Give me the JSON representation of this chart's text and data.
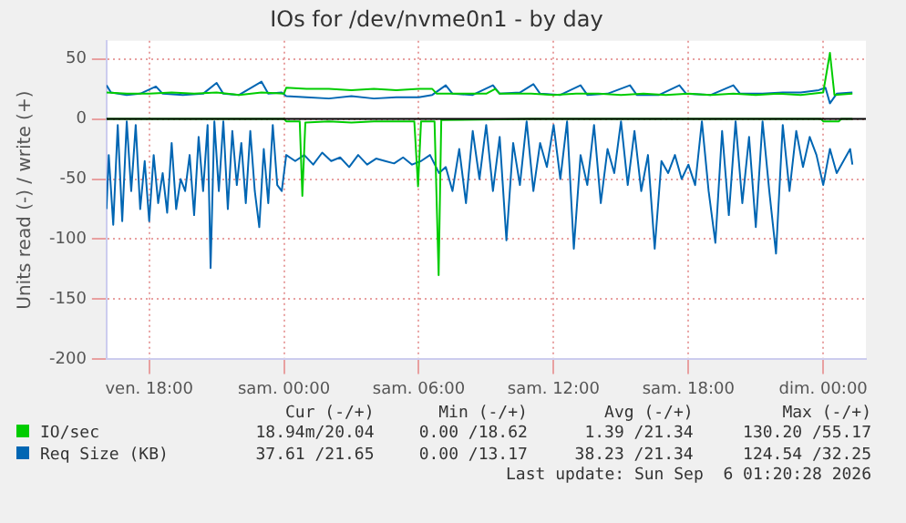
{
  "chart_data": {
    "type": "line",
    "title": "IOs for /dev/nvme0n1 - by day",
    "ylabel": "Units read (-) / write (+)",
    "xlim": [
      "2026-09-04T16:06",
      "2026-09-06T01:54"
    ],
    "xticks": [
      {
        "value": "2026-09-04T18:00",
        "label": "ven. 18:00"
      },
      {
        "value": "2026-09-05T00:00",
        "label": "sam. 00:00"
      },
      {
        "value": "2026-09-05T06:00",
        "label": "sam. 06:00"
      },
      {
        "value": "2026-09-05T12:00",
        "label": "sam. 12:00"
      },
      {
        "value": "2026-09-05T18:00",
        "label": "sam. 18:00"
      },
      {
        "value": "2026-09-06T00:00",
        "label": "dim. 00:00"
      }
    ],
    "ylim": [
      -200,
      65
    ],
    "yticks": [
      -200,
      -150,
      -100,
      -50,
      0,
      50
    ],
    "grid": true,
    "legend": "bottom",
    "marker": "none",
    "line_style": "solid",
    "ref_lines": [
      {
        "axis": "y",
        "value": 0,
        "color": "#000000"
      }
    ],
    "series": [
      {
        "color": "#00cc00",
        "x": [
          "2026-09-04T16:06",
          "2026-09-05T00:00",
          "2026-09-05T00:06",
          "2026-09-05T00:42",
          "2026-09-05T00:49",
          "2026-09-05T00:57",
          "2026-09-05T02:00",
          "2026-09-05T03:00",
          "2026-09-05T04:00",
          "2026-09-05T05:00",
          "2026-09-05T05:48",
          "2026-09-05T05:58",
          "2026-09-05T06:06",
          "2026-09-05T06:42",
          "2026-09-05T06:53",
          "2026-09-05T07:00",
          "2026-09-05T11:00",
          "2026-09-05T16:00",
          "2026-09-05T23:54",
          "2026-09-06T00:00",
          "2026-09-06T00:42",
          "2026-09-06T00:48",
          "2026-09-06T01:18"
        ],
        "values": [
          0,
          0,
          -2,
          -2,
          -64,
          -3,
          -2,
          -3,
          -2,
          -2,
          -2,
          -56,
          -2,
          -2,
          -130,
          -1,
          0,
          0,
          0,
          -2,
          -2,
          0,
          0
        ]
      },
      {
        "name": "IO/sec",
        "color": "#00cc00",
        "x": [
          "2026-09-04T16:06",
          "2026-09-04T17:00",
          "2026-09-04T18:00",
          "2026-09-04T19:00",
          "2026-09-04T20:00",
          "2026-09-04T21:00",
          "2026-09-04T22:00",
          "2026-09-04T23:00",
          "2026-09-05T00:00",
          "2026-09-05T00:06",
          "2026-09-05T01:00",
          "2026-09-05T02:00",
          "2026-09-05T03:00",
          "2026-09-05T04:00",
          "2026-09-05T05:00",
          "2026-09-05T06:00",
          "2026-09-05T06:36",
          "2026-09-05T06:48",
          "2026-09-05T08:00",
          "2026-09-05T09:00",
          "2026-09-05T09:24",
          "2026-09-05T09:36",
          "2026-09-05T11:00",
          "2026-09-05T12:00",
          "2026-09-05T13:00",
          "2026-09-05T14:00",
          "2026-09-05T15:00",
          "2026-09-05T16:00",
          "2026-09-05T17:00",
          "2026-09-05T18:00",
          "2026-09-05T19:00",
          "2026-09-05T20:00",
          "2026-09-05T21:00",
          "2026-09-05T22:00",
          "2026-09-05T23:00",
          "2026-09-06T00:00",
          "2026-09-06T00:18",
          "2026-09-06T00:30",
          "2026-09-06T01:18"
        ],
        "values": [
          22,
          21,
          21,
          22,
          21,
          22,
          20,
          22,
          21,
          26,
          25,
          25,
          24,
          25,
          24,
          25,
          25,
          21,
          21,
          21,
          25,
          21,
          21,
          20,
          21,
          21,
          20,
          21,
          20,
          21,
          20,
          21,
          20,
          21,
          20,
          22,
          55,
          20,
          21
        ]
      },
      {
        "color": "#0066b3",
        "x": [
          "2026-09-04T16:06",
          "2026-09-04T16:12",
          "2026-09-04T16:24",
          "2026-09-04T16:36",
          "2026-09-04T16:48",
          "2026-09-04T17:00",
          "2026-09-04T17:12",
          "2026-09-04T17:24",
          "2026-09-04T17:36",
          "2026-09-04T17:48",
          "2026-09-04T18:00",
          "2026-09-04T18:12",
          "2026-09-04T18:24",
          "2026-09-04T18:36",
          "2026-09-04T18:48",
          "2026-09-04T19:00",
          "2026-09-04T19:12",
          "2026-09-04T19:24",
          "2026-09-04T19:36",
          "2026-09-04T19:48",
          "2026-09-04T20:00",
          "2026-09-04T20:12",
          "2026-09-04T20:24",
          "2026-09-04T20:36",
          "2026-09-04T20:44",
          "2026-09-04T20:54",
          "2026-09-04T21:06",
          "2026-09-04T21:18",
          "2026-09-04T21:30",
          "2026-09-04T21:42",
          "2026-09-04T21:54",
          "2026-09-04T22:06",
          "2026-09-04T22:18",
          "2026-09-04T22:30",
          "2026-09-04T22:42",
          "2026-09-04T22:54",
          "2026-09-04T23:06",
          "2026-09-04T23:18",
          "2026-09-04T23:30",
          "2026-09-04T23:42",
          "2026-09-04T23:54",
          "2026-09-05T00:06",
          "2026-09-05T00:30",
          "2026-09-05T00:54",
          "2026-09-05T01:18",
          "2026-09-05T01:42",
          "2026-09-05T02:06",
          "2026-09-05T02:30",
          "2026-09-05T02:54",
          "2026-09-05T03:18",
          "2026-09-05T03:42",
          "2026-09-05T04:06",
          "2026-09-05T04:30",
          "2026-09-05T04:54",
          "2026-09-05T05:18",
          "2026-09-05T05:42",
          "2026-09-05T06:06",
          "2026-09-05T06:30",
          "2026-09-05T06:54",
          "2026-09-05T07:12",
          "2026-09-05T07:30",
          "2026-09-05T07:48",
          "2026-09-05T08:06",
          "2026-09-05T08:24",
          "2026-09-05T08:42",
          "2026-09-05T09:00",
          "2026-09-05T09:18",
          "2026-09-05T09:36",
          "2026-09-05T09:54",
          "2026-09-05T10:12",
          "2026-09-05T10:30",
          "2026-09-05T10:48",
          "2026-09-05T11:06",
          "2026-09-05T11:24",
          "2026-09-05T11:42",
          "2026-09-05T12:00",
          "2026-09-05T12:18",
          "2026-09-05T12:36",
          "2026-09-05T12:54",
          "2026-09-05T13:12",
          "2026-09-05T13:30",
          "2026-09-05T13:48",
          "2026-09-05T14:06",
          "2026-09-05T14:24",
          "2026-09-05T14:42",
          "2026-09-05T15:00",
          "2026-09-05T15:18",
          "2026-09-05T15:36",
          "2026-09-05T15:54",
          "2026-09-05T16:12",
          "2026-09-05T16:30",
          "2026-09-05T16:48",
          "2026-09-05T17:06",
          "2026-09-05T17:24",
          "2026-09-05T17:42",
          "2026-09-05T18:00",
          "2026-09-05T18:18",
          "2026-09-05T18:36",
          "2026-09-05T18:54",
          "2026-09-05T19:12",
          "2026-09-05T19:30",
          "2026-09-05T19:48",
          "2026-09-05T20:06",
          "2026-09-05T20:24",
          "2026-09-05T20:42",
          "2026-09-05T21:00",
          "2026-09-05T21:18",
          "2026-09-05T21:36",
          "2026-09-05T21:54",
          "2026-09-05T22:12",
          "2026-09-05T22:30",
          "2026-09-05T22:48",
          "2026-09-05T23:06",
          "2026-09-05T23:24",
          "2026-09-05T23:42",
          "2026-09-06T00:00",
          "2026-09-06T00:18",
          "2026-09-06T00:36",
          "2026-09-06T00:54",
          "2026-09-06T01:12",
          "2026-09-06T01:18"
        ],
        "values": [
          -75,
          -30,
          -88,
          -5,
          -85,
          -2,
          -60,
          -5,
          -75,
          -35,
          -85,
          -30,
          -70,
          -45,
          -78,
          -20,
          -75,
          -50,
          -60,
          -30,
          -80,
          -15,
          -60,
          -5,
          -124,
          -2,
          -60,
          -2,
          -75,
          -10,
          -55,
          -20,
          -70,
          -10,
          -60,
          -90,
          -25,
          -70,
          -5,
          -55,
          -60,
          -30,
          -35,
          -30,
          -38,
          -28,
          -35,
          -32,
          -40,
          -30,
          -38,
          -33,
          -35,
          -37,
          -32,
          -38,
          -35,
          -30,
          -45,
          -40,
          -60,
          -25,
          -70,
          -10,
          -50,
          -5,
          -60,
          -15,
          -101,
          -20,
          -55,
          -2,
          -60,
          -20,
          -40,
          -5,
          -50,
          -2,
          -108,
          -30,
          -55,
          -5,
          -70,
          -25,
          -45,
          -2,
          -55,
          -10,
          -60,
          -30,
          -108,
          -35,
          -45,
          -30,
          -50,
          -38,
          -55,
          -2,
          -60,
          -103,
          -10,
          -80,
          -2,
          -70,
          -15,
          -90,
          -2,
          -60,
          -112,
          -5,
          -60,
          -10,
          -40,
          -15,
          -30,
          -55,
          -25,
          -45,
          -35,
          -25,
          -38
        ]
      },
      {
        "name": "Req Size (KB)",
        "color": "#0066b3",
        "x": [
          "2026-09-04T16:06",
          "2026-09-04T16:18",
          "2026-09-04T17:00",
          "2026-09-04T17:36",
          "2026-09-04T18:18",
          "2026-09-04T18:36",
          "2026-09-04T19:30",
          "2026-09-04T20:24",
          "2026-09-04T21:00",
          "2026-09-04T21:18",
          "2026-09-04T22:00",
          "2026-09-04T23:00",
          "2026-09-04T23:18",
          "2026-09-04T23:54",
          "2026-09-05T00:06",
          "2026-09-05T01:00",
          "2026-09-05T02:00",
          "2026-09-05T03:00",
          "2026-09-05T04:00",
          "2026-09-05T05:00",
          "2026-09-05T06:00",
          "2026-09-05T06:36",
          "2026-09-05T07:12",
          "2026-09-05T07:30",
          "2026-09-05T08:24",
          "2026-09-05T09:18",
          "2026-09-05T09:36",
          "2026-09-05T10:30",
          "2026-09-05T11:06",
          "2026-09-05T11:24",
          "2026-09-05T12:18",
          "2026-09-05T13:12",
          "2026-09-05T13:30",
          "2026-09-05T14:24",
          "2026-09-05T15:24",
          "2026-09-05T15:42",
          "2026-09-05T16:42",
          "2026-09-05T17:36",
          "2026-09-05T17:54",
          "2026-09-05T19:00",
          "2026-09-05T20:00",
          "2026-09-05T20:18",
          "2026-09-05T21:18",
          "2026-09-05T22:12",
          "2026-09-05T23:00",
          "2026-09-05T23:48",
          "2026-09-06T00:06",
          "2026-09-06T00:18",
          "2026-09-06T00:36",
          "2026-09-06T01:18"
        ],
        "values": [
          28,
          22,
          20,
          21,
          27,
          21,
          20,
          21,
          30,
          21,
          20,
          31,
          21,
          22,
          19,
          18,
          17,
          19,
          17,
          18,
          18,
          20,
          28,
          21,
          20,
          28,
          21,
          22,
          29,
          21,
          20,
          28,
          20,
          21,
          28,
          20,
          20,
          28,
          21,
          20,
          28,
          21,
          21,
          22,
          22,
          24,
          26,
          13,
          21,
          22
        ]
      }
    ],
    "annotations": [
      "Cur (-/+)",
      "Min (-/+)",
      "Avg (-/+)",
      "Max (-/+)",
      "18.94m/20.04",
      "0.00 /18.62",
      "1.39 /21.34",
      "130.20 /55.17",
      "37.61 /21.65",
      "0.00 /13.17",
      "38.23 /21.34",
      "124.54 /32.25",
      "Last update: Sun Sep  6 01:20:28 2026"
    ]
  }
}
